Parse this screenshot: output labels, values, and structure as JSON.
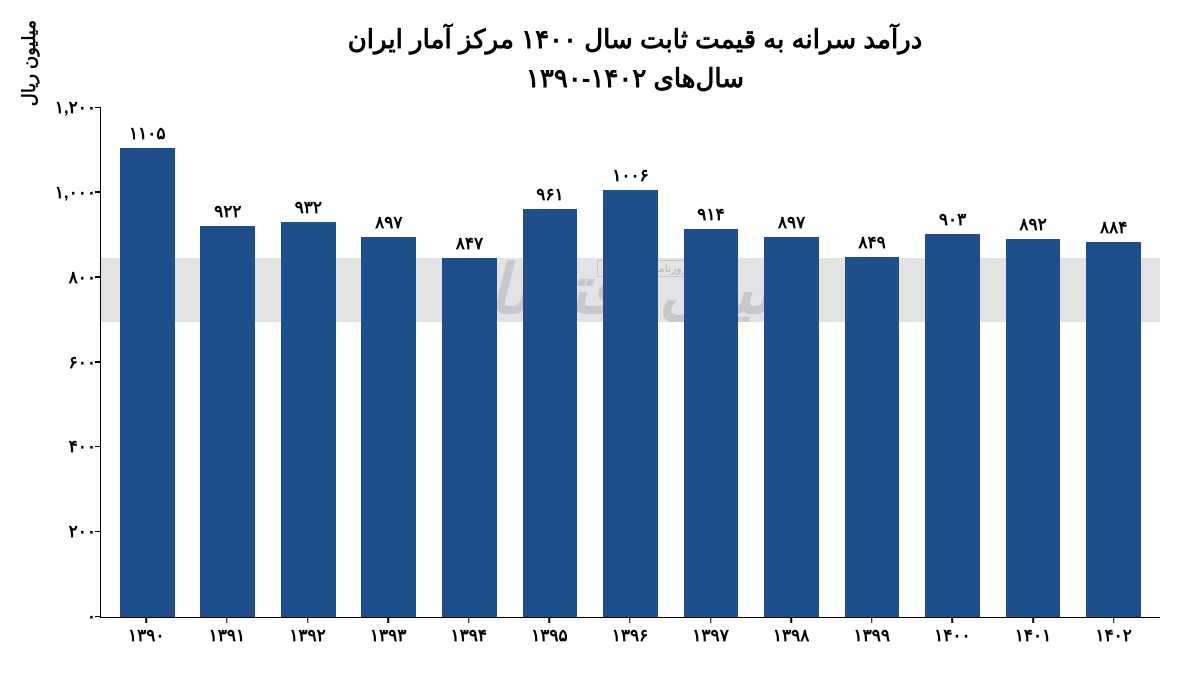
{
  "chart": {
    "type": "bar",
    "title_line1": "درآمد سرانه به قیمت ثابت سال ۱۴۰۰ مرکز آمار ایران",
    "title_line2": "سال‌های ۱۴۰۲-۱۳۹۰",
    "title_fontsize": 26,
    "title_color": "#000000",
    "y_axis_label": "میلیون ریال",
    "y_axis_label_fontsize": 18,
    "background_color": "#ffffff",
    "axis_color": "#000000",
    "bar_color": "#1f4e8c",
    "bar_width_ratio": 0.68,
    "ylim": [
      0,
      1200
    ],
    "ytick_step": 200,
    "y_ticks": [
      {
        "value": 0,
        "label": "۰"
      },
      {
        "value": 200,
        "label": "۲۰۰"
      },
      {
        "value": 400,
        "label": "۴۰۰"
      },
      {
        "value": 600,
        "label": "۶۰۰"
      },
      {
        "value": 800,
        "label": "۸۰۰"
      },
      {
        "value": 1000,
        "label": "۱,۰۰۰"
      },
      {
        "value": 1200,
        "label": "۱,۲۰۰"
      }
    ],
    "categories": [
      "۱۳۹۰",
      "۱۳۹۱",
      "۱۳۹۲",
      "۱۳۹۳",
      "۱۳۹۴",
      "۱۳۹۵",
      "۱۳۹۶",
      "۱۳۹۷",
      "۱۳۹۸",
      "۱۳۹۹",
      "۱۴۰۰",
      "۱۴۰۱",
      "۱۴۰۲"
    ],
    "values": [
      1105,
      922,
      932,
      897,
      847,
      961,
      1006,
      914,
      897,
      849,
      903,
      892,
      884
    ],
    "value_labels": [
      "۱۱۰۵",
      "۹۲۲",
      "۹۳۲",
      "۸۹۷",
      "۸۴۷",
      "۹۶۱",
      "۱۰۰۶",
      "۹۱۴",
      "۸۹۷",
      "۸۴۹",
      "۹۰۳",
      "۸۹۲",
      "۸۸۴"
    ],
    "value_label_fontsize": 17,
    "x_label_fontsize": 17,
    "y_tick_fontsize": 17,
    "watermark": {
      "band_color": "#e3e3e3",
      "text_color": "#c8c8c8",
      "main_text": "دنیای اقتصاد",
      "sub_text": "روزنامه صبح ایران",
      "band_value_position": 770
    }
  }
}
